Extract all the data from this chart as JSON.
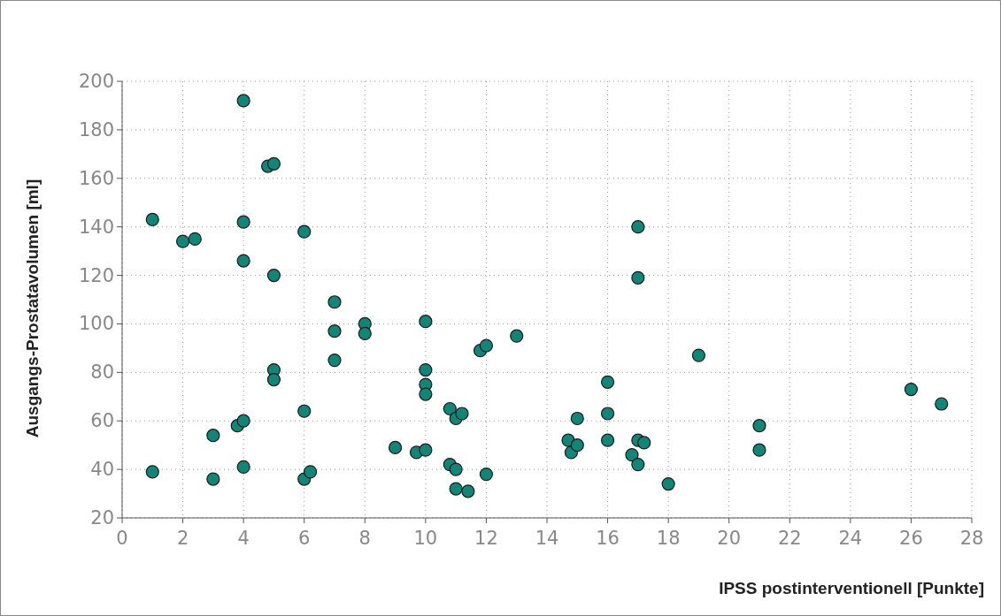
{
  "chart_data": {
    "type": "scatter",
    "xlabel": "IPSS postinterventionell [Punkte]",
    "ylabel": "Ausgangs-Prostatavolumen [ml]",
    "xlim": [
      0,
      28
    ],
    "xticks": [
      0,
      2,
      4,
      6,
      8,
      10,
      12,
      14,
      16,
      18,
      20,
      22,
      24,
      26,
      28
    ],
    "ylim": [
      20,
      200
    ],
    "yticks": [
      20,
      40,
      60,
      80,
      100,
      120,
      140,
      160,
      180,
      200
    ],
    "grid": true,
    "marker": "circle",
    "series": [
      {
        "color": "#138577",
        "x": [
          1,
          1,
          2,
          2.4,
          3,
          3,
          3.8,
          4,
          4,
          4,
          4,
          4,
          4.8,
          5,
          5,
          5,
          5,
          6,
          6,
          6,
          6.2,
          7,
          7,
          7,
          8,
          8,
          9,
          9.7,
          10,
          10,
          10,
          10,
          10,
          10.8,
          11,
          11.2,
          10.8,
          11,
          11,
          11.4,
          12,
          11.8,
          12,
          13,
          14.7,
          14.8,
          15,
          15,
          16,
          16,
          16,
          16.8,
          17,
          17,
          17.2,
          17,
          17,
          18,
          19,
          21,
          21,
          26,
          27
        ],
        "values": [
          39,
          143,
          134,
          135,
          54,
          36,
          58,
          60,
          41,
          192,
          142,
          126,
          165,
          166,
          120,
          81,
          77,
          138,
          64,
          36,
          39,
          109,
          97,
          85,
          100,
          96,
          49,
          47,
          48,
          101,
          81,
          75,
          71,
          65,
          61,
          63,
          42,
          40,
          32,
          31,
          38,
          89,
          91,
          95,
          52,
          47,
          50,
          61,
          76,
          63,
          52,
          46,
          42,
          52,
          51,
          140,
          119,
          34,
          87,
          58,
          48,
          73,
          67
        ]
      }
    ]
  }
}
